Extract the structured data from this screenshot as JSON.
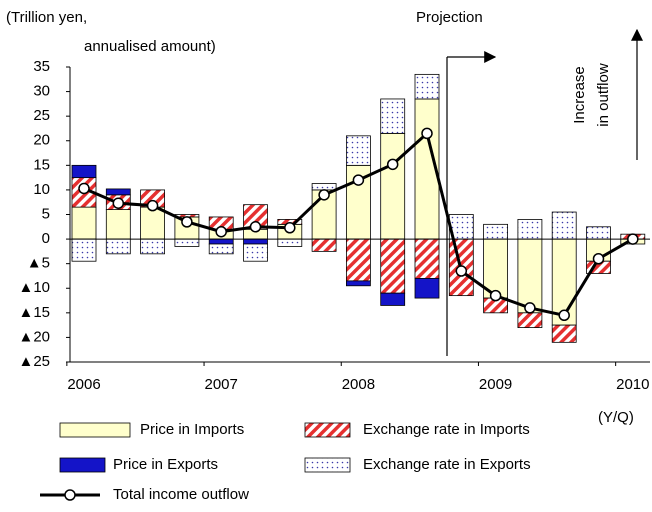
{
  "chart_data": {
    "type": "bar",
    "y_label": [
      "(Trillion yen,",
      "annualised amount)"
    ],
    "annotations": {
      "projection": "Projection",
      "outflow": [
        "Increase",
        "in outflow"
      ],
      "x_unit": "(Y/Q)"
    },
    "categories": [
      "2006",
      null,
      null,
      null,
      "2007",
      null,
      null,
      null,
      "2008",
      null,
      null,
      null,
      "2009",
      null,
      null,
      null,
      "2010"
    ],
    "series": [
      {
        "name": "Price in Imports",
        "type": "bar",
        "pattern": "solid",
        "color": "#ffffcc",
        "values": [
          6.5,
          6,
          6.5,
          4.5,
          2,
          2,
          3,
          10,
          15,
          21.5,
          28.5,
          0,
          -12,
          -15,
          -17.5,
          -4.5,
          -1
        ]
      },
      {
        "name": "Exchange rate in Imports",
        "type": "bar",
        "pattern": "hatch",
        "color": "#e53030",
        "values": [
          6,
          3,
          3.5,
          0.5,
          2.5,
          5,
          1,
          -2.5,
          -8.5,
          -11,
          -8,
          -11.5,
          -3,
          -3,
          -3.5,
          -2.5,
          1
        ]
      },
      {
        "name": "Price in Exports",
        "type": "bar",
        "pattern": "solid",
        "color": "#1414c8",
        "values": [
          2.5,
          1.2,
          0,
          0,
          -1,
          -1,
          0,
          0,
          -1,
          -2.5,
          -4,
          0,
          0,
          0,
          0,
          0,
          0
        ]
      },
      {
        "name": "Exchange rate in Exports",
        "type": "bar",
        "pattern": "dots",
        "color": "#3a3aa8",
        "values": [
          -4.5,
          -3,
          -3,
          -1.5,
          -2,
          -3.5,
          -1.5,
          1.3,
          6,
          7,
          5,
          5,
          3,
          4,
          5.5,
          2.5,
          0
        ]
      },
      {
        "name": "Total income outflow",
        "type": "line",
        "color": "#000000",
        "values": [
          10.3,
          7.3,
          6.8,
          3.5,
          1.5,
          2.5,
          2.3,
          9,
          12,
          15.2,
          21.5,
          -6.5,
          -11.5,
          -14,
          -15.5,
          -4,
          0
        ]
      }
    ],
    "ylim": [
      -25,
      35
    ],
    "yticks": [
      {
        "value": -25,
        "label": "▲25"
      },
      {
        "value": -20,
        "label": "▲20"
      },
      {
        "value": -15,
        "label": "▲15"
      },
      {
        "value": -10,
        "label": "▲10"
      },
      {
        "value": -5,
        "label": "▲5"
      },
      0,
      5,
      10,
      15,
      20,
      25,
      30,
      35
    ]
  }
}
